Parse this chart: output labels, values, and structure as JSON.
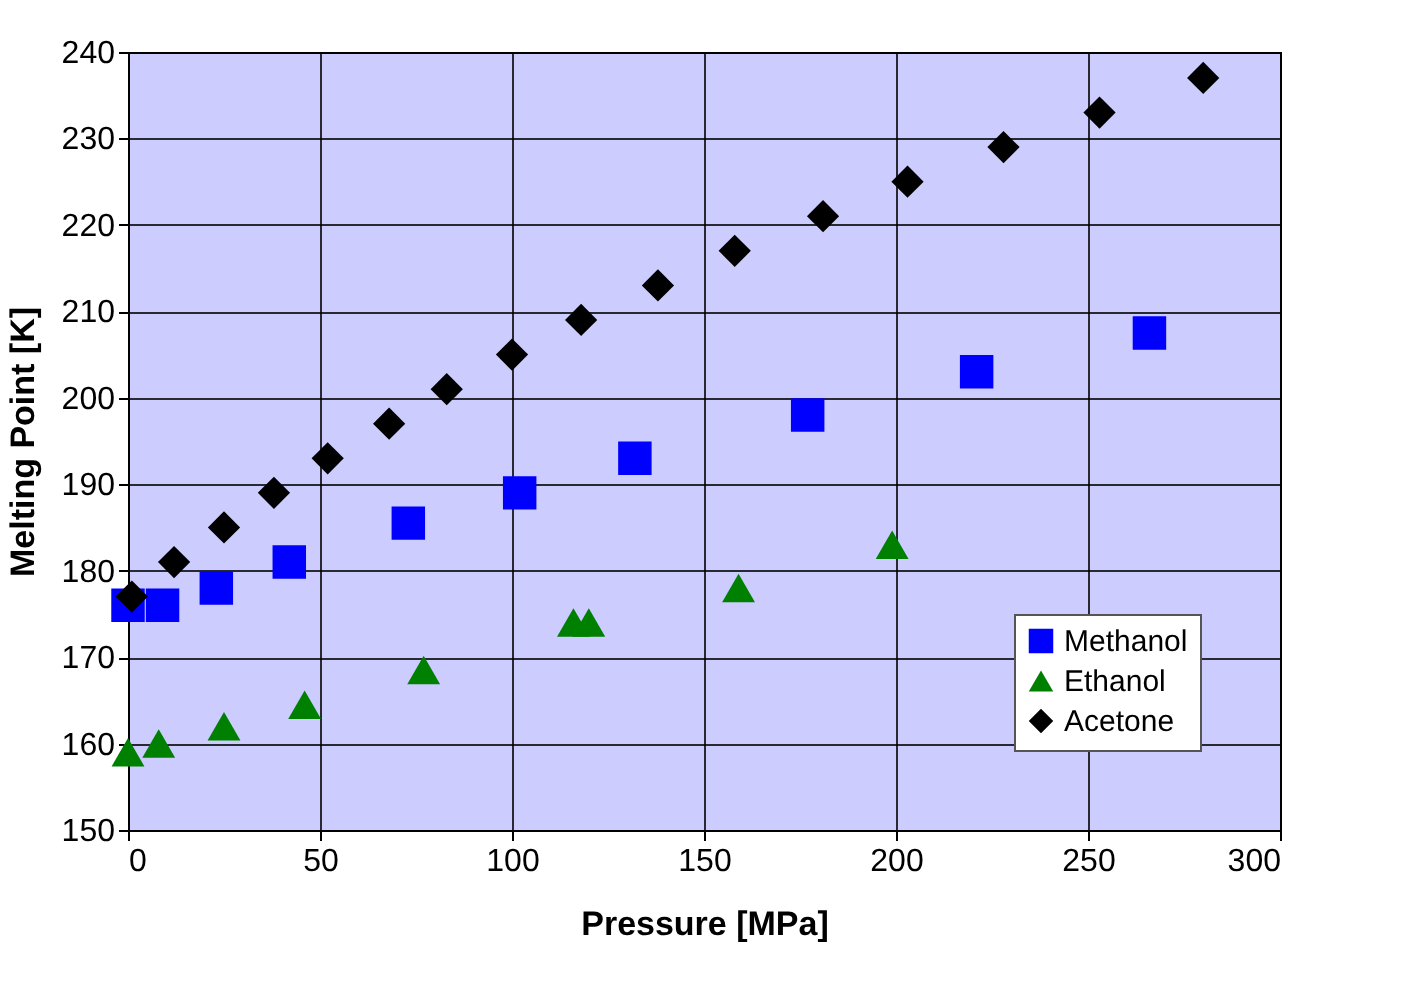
{
  "chart_data": {
    "type": "scatter",
    "xlabel": "Pressure [MPa]",
    "ylabel": "Melting Point [K]",
    "xlim": [
      0,
      300
    ],
    "xticks": [
      0,
      50,
      100,
      150,
      200,
      250,
      300
    ],
    "ylim": [
      150,
      240
    ],
    "yticks": [
      150,
      160,
      170,
      180,
      190,
      200,
      210,
      220,
      230,
      240
    ],
    "grid": true,
    "legend": "bottom right",
    "series": [
      {
        "name": "Methanol",
        "color": "#0000ff",
        "marker": "square",
        "x": [
          0,
          9,
          23,
          42,
          73,
          102,
          132,
          177,
          221,
          266
        ],
        "values": [
          176,
          176,
          178,
          181,
          185.5,
          189,
          193,
          198,
          203,
          207.5
        ]
      },
      {
        "name": "Ethanol",
        "color": "#008000",
        "marker": "triangle",
        "x": [
          0,
          8,
          25,
          46,
          77,
          116,
          120,
          159,
          199
        ],
        "values": [
          159,
          160,
          162,
          164.5,
          168.5,
          174,
          174,
          178,
          183
        ]
      },
      {
        "name": "Acetone",
        "color": "#000000",
        "marker": "diamond",
        "x": [
          1,
          12,
          25,
          38,
          52,
          68,
          83,
          100,
          118,
          138,
          158,
          181,
          203,
          228,
          253,
          280
        ],
        "values": [
          177,
          181,
          185,
          189,
          193,
          197,
          201,
          205,
          209,
          213,
          217,
          221,
          225,
          229,
          233,
          237
        ]
      }
    ]
  }
}
